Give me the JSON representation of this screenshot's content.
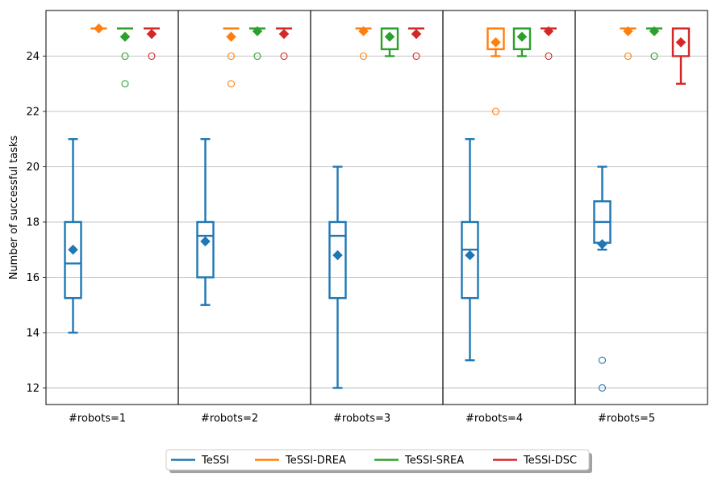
{
  "chart_data": {
    "type": "box",
    "ylabel": "Number of successful tasks",
    "ylim": [
      11.4,
      25.65
    ],
    "y_ticks": [
      "12",
      "14",
      "16",
      "18",
      "20",
      "22",
      "24"
    ],
    "grid": "horizontal",
    "groups": [
      "#robots=1",
      "#robots=2",
      "#robots=3",
      "#robots=4",
      "#robots=5"
    ],
    "series": [
      {
        "name": "TeSSI",
        "color": "#1f77b4",
        "boxes": [
          {
            "whislo": 14,
            "q1": 15.25,
            "med": 16.5,
            "q3": 18,
            "whishi": 21,
            "mean": 17.0,
            "fliers": []
          },
          {
            "whislo": 15,
            "q1": 16,
            "med": 17.5,
            "q3": 18,
            "whishi": 21,
            "mean": 17.3,
            "fliers": []
          },
          {
            "whislo": 12,
            "q1": 15.25,
            "med": 17.5,
            "q3": 18,
            "whishi": 20,
            "mean": 16.8,
            "fliers": []
          },
          {
            "whislo": 13,
            "q1": 15.25,
            "med": 17,
            "q3": 18,
            "whishi": 21,
            "mean": 16.8,
            "fliers": []
          },
          {
            "whislo": 17,
            "q1": 17.25,
            "med": 18,
            "q3": 18.75,
            "whishi": 20,
            "mean": 17.2,
            "fliers": [
              13,
              12
            ]
          }
        ]
      },
      {
        "name": "TeSSI-DREA",
        "color": "#ff7f0e",
        "boxes": [
          {
            "whislo": 25,
            "q1": 25,
            "med": 25,
            "q3": 25,
            "whishi": 25,
            "mean": 25.0,
            "fliers": []
          },
          {
            "whislo": 25,
            "q1": 25,
            "med": 25,
            "q3": 25,
            "whishi": 25,
            "mean": 24.7,
            "fliers": [
              24,
              23
            ]
          },
          {
            "whislo": 25,
            "q1": 25,
            "med": 25,
            "q3": 25,
            "whishi": 25,
            "mean": 24.9,
            "fliers": [
              24
            ]
          },
          {
            "whislo": 24,
            "q1": 24.25,
            "med": 25,
            "q3": 25,
            "whishi": 25,
            "mean": 24.5,
            "fliers": [
              22
            ]
          },
          {
            "whislo": 25,
            "q1": 25,
            "med": 25,
            "q3": 25,
            "whishi": 25,
            "mean": 24.9,
            "fliers": [
              24
            ]
          }
        ]
      },
      {
        "name": "TeSSI-SREA",
        "color": "#2ca02c",
        "boxes": [
          {
            "whislo": 25,
            "q1": 25,
            "med": 25,
            "q3": 25,
            "whishi": 25,
            "mean": 24.7,
            "fliers": [
              24,
              23
            ]
          },
          {
            "whislo": 25,
            "q1": 25,
            "med": 25,
            "q3": 25,
            "whishi": 25,
            "mean": 24.9,
            "fliers": [
              24
            ]
          },
          {
            "whislo": 24,
            "q1": 24.25,
            "med": 25,
            "q3": 25,
            "whishi": 25,
            "mean": 24.7,
            "fliers": []
          },
          {
            "whislo": 24,
            "q1": 24.25,
            "med": 25,
            "q3": 25,
            "whishi": 25,
            "mean": 24.7,
            "fliers": []
          },
          {
            "whislo": 25,
            "q1": 25,
            "med": 25,
            "q3": 25,
            "whishi": 25,
            "mean": 24.9,
            "fliers": [
              24
            ]
          }
        ]
      },
      {
        "name": "TeSSI-DSC",
        "color": "#d62728",
        "boxes": [
          {
            "whislo": 25,
            "q1": 25,
            "med": 25,
            "q3": 25,
            "whishi": 25,
            "mean": 24.8,
            "fliers": [
              24
            ]
          },
          {
            "whislo": 25,
            "q1": 25,
            "med": 25,
            "q3": 25,
            "whishi": 25,
            "mean": 24.8,
            "fliers": [
              24
            ]
          },
          {
            "whislo": 25,
            "q1": 25,
            "med": 25,
            "q3": 25,
            "whishi": 25,
            "mean": 24.8,
            "fliers": [
              24
            ]
          },
          {
            "whislo": 25,
            "q1": 25,
            "med": 25,
            "q3": 25,
            "whishi": 25,
            "mean": 24.9,
            "fliers": [
              24
            ]
          },
          {
            "whislo": 23,
            "q1": 24,
            "med": 25,
            "q3": 25,
            "whishi": 25,
            "mean": 24.5,
            "fliers": []
          }
        ]
      }
    ],
    "legend": {
      "placement": "bottom-center",
      "ncol": 4
    }
  }
}
